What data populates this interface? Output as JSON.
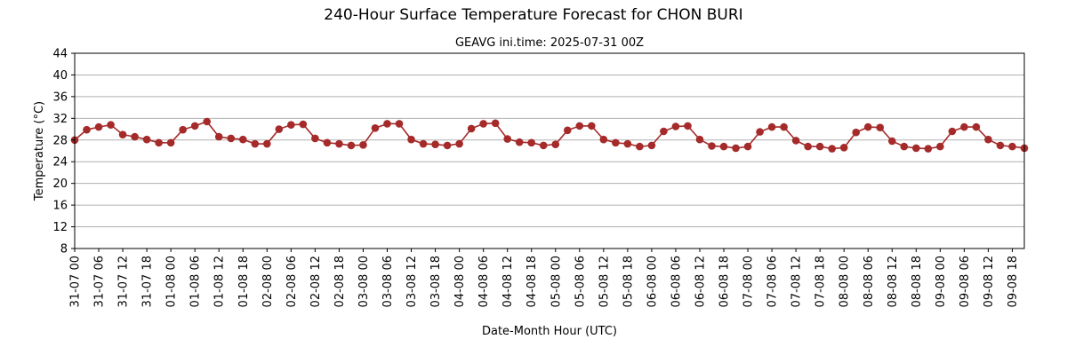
{
  "chart_data": {
    "type": "line",
    "title": "240-Hour Surface Temperature Forecast for CHON BURI",
    "subtitle": "GEAVG ini.time: 2025-07-31 00Z",
    "xlabel": "Date-Month Hour (UTC)",
    "ylabel": "Temperature (°C)",
    "ylim": [
      8,
      44
    ],
    "yticks": [
      8,
      12,
      16,
      20,
      24,
      28,
      32,
      36,
      40,
      44
    ],
    "grid": "horizontal",
    "xticks": [
      "31-07 00",
      "31-07 06",
      "31-07 12",
      "31-07 18",
      "01-08 00",
      "01-08 06",
      "01-08 12",
      "01-08 18",
      "02-08 00",
      "02-08 06",
      "02-08 12",
      "02-08 18",
      "03-08 00",
      "03-08 06",
      "03-08 12",
      "03-08 18",
      "04-08 00",
      "04-08 06",
      "04-08 12",
      "04-08 18",
      "05-08 00",
      "05-08 06",
      "05-08 12",
      "05-08 18",
      "06-08 00",
      "06-08 06",
      "06-08 12",
      "06-08 18",
      "07-08 00",
      "07-08 06",
      "07-08 12",
      "07-08 18",
      "08-08 00",
      "08-08 06",
      "08-08 12",
      "08-08 18",
      "09-08 00",
      "09-08 06",
      "09-08 12",
      "09-08 18"
    ],
    "x_step_hours": 3,
    "series": [
      {
        "name": "",
        "color": "#a52a2a",
        "values": [
          28.0,
          29.9,
          30.4,
          30.8,
          29.0,
          28.6,
          28.1,
          27.5,
          27.5,
          29.9,
          30.6,
          31.4,
          28.6,
          28.3,
          28.1,
          27.3,
          27.3,
          30.0,
          30.8,
          30.9,
          28.3,
          27.5,
          27.3,
          27.0,
          27.1,
          30.2,
          31.0,
          31.0,
          28.1,
          27.3,
          27.2,
          27.0,
          27.3,
          30.1,
          31.0,
          31.1,
          28.2,
          27.6,
          27.5,
          27.0,
          27.2,
          29.8,
          30.6,
          30.6,
          28.1,
          27.5,
          27.3,
          26.8,
          27.0,
          29.6,
          30.5,
          30.6,
          28.1,
          26.9,
          26.8,
          26.5,
          26.8,
          29.5,
          30.4,
          30.4,
          27.9,
          26.8,
          26.8,
          26.4,
          26.6,
          29.4,
          30.4,
          30.3,
          27.8,
          26.8,
          26.5,
          26.4,
          26.8,
          29.6,
          30.4,
          30.4,
          28.1,
          27.0,
          26.8,
          26.5
        ]
      }
    ]
  }
}
